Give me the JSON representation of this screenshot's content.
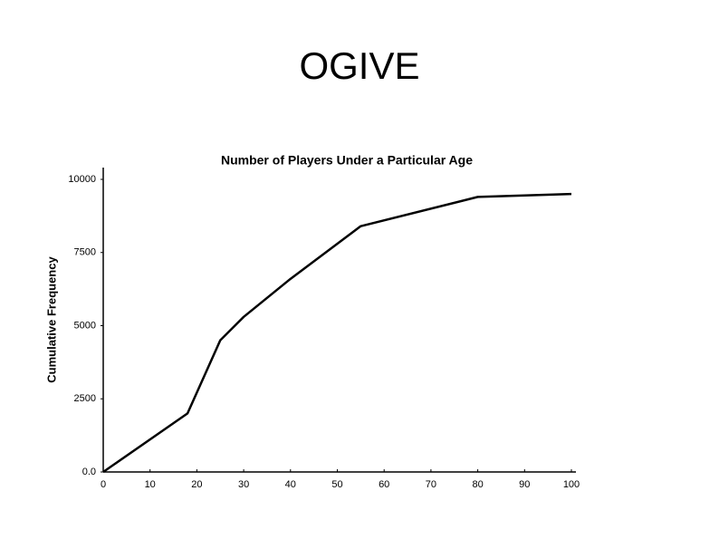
{
  "slide_title": "OGIVE",
  "chart_data": {
    "type": "line",
    "title": "Number of Players Under a Particular Age",
    "y_label": "Cumulative Frequency",
    "x": [
      0,
      18,
      25,
      30,
      40,
      55,
      80,
      100
    ],
    "series": [
      {
        "color": "#000000",
        "values": [
          0,
          2000,
          4500,
          5300,
          6600,
          8400,
          9400,
          9500
        ]
      }
    ],
    "xlim": [
      0,
      100
    ],
    "xticks": [
      0,
      10,
      20,
      30,
      40,
      50,
      60,
      70,
      80,
      90,
      100
    ],
    "ylim": [
      0,
      10000
    ],
    "yticks": [
      {
        "value": 0,
        "label": "0.0"
      },
      2500,
      5000,
      7500,
      10000
    ]
  }
}
